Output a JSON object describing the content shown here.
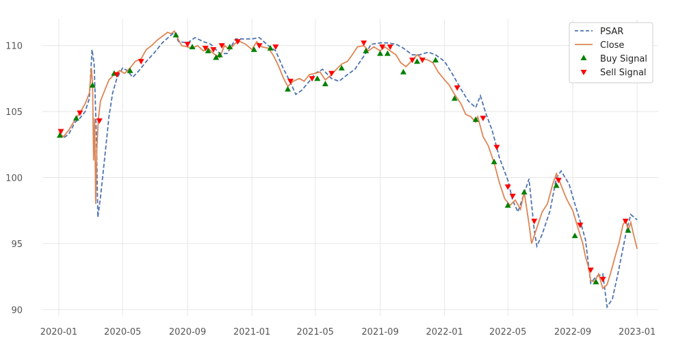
{
  "chart_data": {
    "type": "line",
    "title": "",
    "xlabel": "",
    "ylabel": "",
    "xlim": [
      "2019-12-01",
      "2023-02-10"
    ],
    "ylim": [
      89.5,
      112
    ],
    "grid": true,
    "legend_position": "top-right",
    "x_ticks": [
      "2020-01",
      "2020-05",
      "2020-09",
      "2021-01",
      "2021-05",
      "2021-09",
      "2022-01",
      "2022-05",
      "2022-09",
      "2023-01"
    ],
    "y_ticks": [
      90,
      95,
      100,
      105,
      110
    ],
    "colors": {
      "psar": "#4c72b0",
      "close": "#dd8452",
      "buy": "#008000",
      "sell": "#ff0000",
      "grid": "#e6e6e6"
    },
    "series": [
      {
        "name": "Close",
        "style": "solid",
        "points": [
          [
            "2020-01-01",
            103.4
          ],
          [
            "2020-01-10",
            103.1
          ],
          [
            "2020-01-20",
            103.6
          ],
          [
            "2020-02-01",
            104.4
          ],
          [
            "2020-02-10",
            104.9
          ],
          [
            "2020-02-20",
            105.6
          ],
          [
            "2020-02-28",
            106.4
          ],
          [
            "2020-03-03",
            108.3
          ],
          [
            "2020-03-05",
            107.0
          ],
          [
            "2020-03-07",
            101.3
          ],
          [
            "2020-03-09",
            104.5
          ],
          [
            "2020-03-11",
            98.0
          ],
          [
            "2020-03-13",
            102.0
          ],
          [
            "2020-03-16",
            104.4
          ],
          [
            "2020-03-20",
            105.8
          ],
          [
            "2020-03-28",
            106.6
          ],
          [
            "2020-04-05",
            107.4
          ],
          [
            "2020-04-15",
            107.8
          ],
          [
            "2020-04-25",
            108.1
          ],
          [
            "2020-05-05",
            107.9
          ],
          [
            "2020-05-15",
            108.3
          ],
          [
            "2020-05-25",
            108.8
          ],
          [
            "2020-06-05",
            109.0
          ],
          [
            "2020-06-15",
            109.7
          ],
          [
            "2020-06-25",
            110.0
          ],
          [
            "2020-07-05",
            110.4
          ],
          [
            "2020-07-15",
            110.7
          ],
          [
            "2020-07-25",
            111.0
          ],
          [
            "2020-08-01",
            110.9
          ],
          [
            "2020-08-07",
            111.1
          ],
          [
            "2020-08-14",
            110.5
          ],
          [
            "2020-08-21",
            110.0
          ],
          [
            "2020-09-01",
            109.9
          ],
          [
            "2020-09-10",
            109.8
          ],
          [
            "2020-09-20",
            110.0
          ],
          [
            "2020-10-01",
            109.6
          ],
          [
            "2020-10-10",
            109.8
          ],
          [
            "2020-10-20",
            109.4
          ],
          [
            "2020-11-01",
            109.1
          ],
          [
            "2020-11-10",
            110.0
          ],
          [
            "2020-11-20",
            109.7
          ],
          [
            "2020-12-01",
            110.2
          ],
          [
            "2020-12-10",
            110.3
          ],
          [
            "2020-12-20",
            110.1
          ],
          [
            "2021-01-01",
            109.7
          ],
          [
            "2021-01-10",
            110.3
          ],
          [
            "2021-01-20",
            109.9
          ],
          [
            "2021-02-01",
            109.8
          ],
          [
            "2021-02-10",
            109.3
          ],
          [
            "2021-02-20",
            108.5
          ],
          [
            "2021-03-01",
            107.6
          ],
          [
            "2021-03-10",
            106.9
          ],
          [
            "2021-03-20",
            107.3
          ],
          [
            "2021-04-01",
            107.5
          ],
          [
            "2021-04-10",
            107.3
          ],
          [
            "2021-04-20",
            107.8
          ],
          [
            "2021-05-01",
            107.9
          ],
          [
            "2021-05-10",
            108.0
          ],
          [
            "2021-05-20",
            107.4
          ],
          [
            "2021-06-01",
            107.8
          ],
          [
            "2021-06-10",
            108.2
          ],
          [
            "2021-06-20",
            108.6
          ],
          [
            "2021-07-01",
            108.8
          ],
          [
            "2021-07-10",
            109.3
          ],
          [
            "2021-07-20",
            109.9
          ],
          [
            "2021-08-01",
            110.0
          ],
          [
            "2021-08-10",
            109.6
          ],
          [
            "2021-08-20",
            109.9
          ],
          [
            "2021-09-01",
            109.6
          ],
          [
            "2021-09-10",
            109.9
          ],
          [
            "2021-09-20",
            109.6
          ],
          [
            "2021-10-01",
            109.3
          ],
          [
            "2021-10-10",
            108.7
          ],
          [
            "2021-10-20",
            108.4
          ],
          [
            "2021-11-01",
            108.9
          ],
          [
            "2021-11-10",
            109.3
          ],
          [
            "2021-11-20",
            109.0
          ],
          [
            "2021-12-01",
            108.9
          ],
          [
            "2021-12-10",
            108.7
          ],
          [
            "2021-12-20",
            108.0
          ],
          [
            "2022-01-01",
            107.4
          ],
          [
            "2022-01-10",
            107.0
          ],
          [
            "2022-01-20",
            106.3
          ],
          [
            "2022-02-01",
            105.6
          ],
          [
            "2022-02-10",
            104.8
          ],
          [
            "2022-02-20",
            104.6
          ],
          [
            "2022-03-01",
            104.2
          ],
          [
            "2022-03-05",
            104.6
          ],
          [
            "2022-03-15",
            103.1
          ],
          [
            "2022-03-25",
            102.4
          ],
          [
            "2022-04-05",
            101.1
          ],
          [
            "2022-04-15",
            99.6
          ],
          [
            "2022-04-25",
            98.4
          ],
          [
            "2022-05-05",
            97.9
          ],
          [
            "2022-05-15",
            98.3
          ],
          [
            "2022-05-25",
            97.6
          ],
          [
            "2022-06-01",
            98.9
          ],
          [
            "2022-06-10",
            96.5
          ],
          [
            "2022-06-15",
            95.0
          ],
          [
            "2022-06-25",
            96.2
          ],
          [
            "2022-07-05",
            97.4
          ],
          [
            "2022-07-15",
            98.0
          ],
          [
            "2022-07-25",
            99.5
          ],
          [
            "2022-08-01",
            100.3
          ],
          [
            "2022-08-10",
            99.4
          ],
          [
            "2022-08-20",
            98.4
          ],
          [
            "2022-09-01",
            97.5
          ],
          [
            "2022-09-10",
            96.3
          ],
          [
            "2022-09-20",
            95.0
          ],
          [
            "2022-09-25",
            94.0
          ],
          [
            "2022-10-01",
            93.2
          ],
          [
            "2022-10-05",
            92.2
          ],
          [
            "2022-10-12",
            92.1
          ],
          [
            "2022-10-20",
            92.7
          ],
          [
            "2022-10-28",
            91.6
          ],
          [
            "2022-11-05",
            91.9
          ],
          [
            "2022-11-12",
            92.8
          ],
          [
            "2022-11-20",
            94.0
          ],
          [
            "2022-11-28",
            95.1
          ],
          [
            "2022-12-05",
            96.4
          ],
          [
            "2022-12-10",
            96.8
          ],
          [
            "2022-12-15",
            96.0
          ],
          [
            "2022-12-20",
            96.6
          ],
          [
            "2022-12-25",
            95.7
          ],
          [
            "2023-01-01",
            94.6
          ]
        ]
      },
      {
        "name": "PSAR",
        "style": "dashed",
        "points": [
          [
            "2020-01-01",
            103.2
          ],
          [
            "2020-01-10",
            103.0
          ],
          [
            "2020-01-20",
            103.3
          ],
          [
            "2020-02-01",
            104.2
          ],
          [
            "2020-02-10",
            104.5
          ],
          [
            "2020-02-20",
            105.0
          ],
          [
            "2020-02-28",
            106.0
          ],
          [
            "2020-03-04",
            109.7
          ],
          [
            "2020-03-08",
            108.6
          ],
          [
            "2020-03-12",
            103.5
          ],
          [
            "2020-03-15",
            97.0
          ],
          [
            "2020-03-20",
            98.5
          ],
          [
            "2020-03-28",
            101.5
          ],
          [
            "2020-04-05",
            104.6
          ],
          [
            "2020-04-12",
            106.4
          ],
          [
            "2020-04-20",
            107.5
          ],
          [
            "2020-05-01",
            108.3
          ],
          [
            "2020-05-10",
            108.1
          ],
          [
            "2020-05-20",
            107.6
          ],
          [
            "2020-06-01",
            108.1
          ],
          [
            "2020-06-15",
            108.8
          ],
          [
            "2020-07-01",
            109.5
          ],
          [
            "2020-07-15",
            110.2
          ],
          [
            "2020-08-01",
            110.8
          ],
          [
            "2020-08-07",
            111.0
          ],
          [
            "2020-08-15",
            110.3
          ],
          [
            "2020-09-01",
            110.2
          ],
          [
            "2020-09-15",
            110.6
          ],
          [
            "2020-10-01",
            110.3
          ],
          [
            "2020-10-15",
            110.1
          ],
          [
            "2020-11-01",
            109.4
          ],
          [
            "2020-11-15",
            109.4
          ],
          [
            "2020-12-01",
            110.5
          ],
          [
            "2020-12-15",
            110.5
          ],
          [
            "2021-01-01",
            110.5
          ],
          [
            "2021-01-15",
            110.6
          ],
          [
            "2021-02-01",
            110.0
          ],
          [
            "2021-02-15",
            109.6
          ],
          [
            "2021-03-01",
            108.3
          ],
          [
            "2021-03-15",
            107.2
          ],
          [
            "2021-03-25",
            106.3
          ],
          [
            "2021-04-05",
            106.6
          ],
          [
            "2021-04-20",
            107.3
          ],
          [
            "2021-05-01",
            107.9
          ],
          [
            "2021-05-15",
            108.2
          ],
          [
            "2021-06-01",
            107.5
          ],
          [
            "2021-06-15",
            107.3
          ],
          [
            "2021-07-01",
            107.8
          ],
          [
            "2021-07-15",
            108.2
          ],
          [
            "2021-08-01",
            109.2
          ],
          [
            "2021-08-15",
            110.1
          ],
          [
            "2021-09-01",
            110.2
          ],
          [
            "2021-09-15",
            110.2
          ],
          [
            "2021-10-01",
            110.1
          ],
          [
            "2021-10-15",
            109.8
          ],
          [
            "2021-11-01",
            109.3
          ],
          [
            "2021-11-15",
            109.3
          ],
          [
            "2021-12-01",
            109.5
          ],
          [
            "2021-12-15",
            109.3
          ],
          [
            "2022-01-01",
            108.8
          ],
          [
            "2022-01-15",
            107.9
          ],
          [
            "2022-02-01",
            106.7
          ],
          [
            "2022-02-15",
            105.8
          ],
          [
            "2022-03-01",
            105.3
          ],
          [
            "2022-03-10",
            106.2
          ],
          [
            "2022-03-20",
            104.9
          ],
          [
            "2022-04-01",
            103.6
          ],
          [
            "2022-04-15",
            101.5
          ],
          [
            "2022-05-01",
            99.8
          ],
          [
            "2022-05-10",
            98.3
          ],
          [
            "2022-05-20",
            97.4
          ],
          [
            "2022-06-01",
            98.8
          ],
          [
            "2022-06-10",
            99.9
          ],
          [
            "2022-06-20",
            96.0
          ],
          [
            "2022-06-25",
            94.8
          ],
          [
            "2022-07-05",
            95.7
          ],
          [
            "2022-07-20",
            97.5
          ],
          [
            "2022-08-01",
            100.0
          ],
          [
            "2022-08-10",
            100.5
          ],
          [
            "2022-08-25",
            99.5
          ],
          [
            "2022-09-05",
            98.0
          ],
          [
            "2022-09-15",
            96.7
          ],
          [
            "2022-09-25",
            95.3
          ],
          [
            "2022-10-05",
            92.0
          ],
          [
            "2022-10-15",
            92.5
          ],
          [
            "2022-10-28",
            92.7
          ],
          [
            "2022-11-05",
            90.2
          ],
          [
            "2022-11-15",
            90.8
          ],
          [
            "2022-11-25",
            92.6
          ],
          [
            "2022-12-05",
            94.6
          ],
          [
            "2022-12-12",
            96.0
          ],
          [
            "2022-12-20",
            97.2
          ],
          [
            "2023-01-01",
            96.8
          ]
        ]
      }
    ],
    "buy_signals": [
      [
        "2020-01-03",
        103.2
      ],
      [
        "2020-02-03",
        104.5
      ],
      [
        "2020-03-05",
        107.0
      ],
      [
        "2020-04-15",
        107.9
      ],
      [
        "2020-05-15",
        108.1
      ],
      [
        "2020-08-10",
        110.8
      ],
      [
        "2020-09-10",
        109.9
      ],
      [
        "2020-10-10",
        109.6
      ],
      [
        "2020-10-25",
        109.1
      ],
      [
        "2020-11-01",
        109.3
      ],
      [
        "2020-11-20",
        109.9
      ],
      [
        "2021-01-05",
        109.7
      ],
      [
        "2021-02-05",
        109.8
      ],
      [
        "2021-03-10",
        106.7
      ],
      [
        "2021-05-05",
        107.5
      ],
      [
        "2021-05-20",
        107.1
      ],
      [
        "2021-06-20",
        108.3
      ],
      [
        "2021-08-05",
        109.6
      ],
      [
        "2021-09-01",
        109.4
      ],
      [
        "2021-09-15",
        109.4
      ],
      [
        "2021-10-15",
        108.0
      ],
      [
        "2021-11-10",
        108.8
      ],
      [
        "2021-12-15",
        108.9
      ],
      [
        "2022-01-20",
        106.0
      ],
      [
        "2022-03-01",
        104.4
      ],
      [
        "2022-04-05",
        101.2
      ],
      [
        "2022-05-01",
        97.9
      ],
      [
        "2022-06-01",
        98.9
      ],
      [
        "2022-08-01",
        99.4
      ],
      [
        "2022-09-05",
        95.6
      ],
      [
        "2022-10-15",
        92.1
      ],
      [
        "2022-12-15",
        96.0
      ]
    ],
    "sell_signals": [
      [
        "2020-01-05",
        103.5
      ],
      [
        "2020-02-10",
        104.9
      ],
      [
        "2020-03-18",
        104.3
      ],
      [
        "2020-04-20",
        107.8
      ],
      [
        "2020-06-05",
        108.8
      ],
      [
        "2020-09-01",
        110.1
      ],
      [
        "2020-10-05",
        109.8
      ],
      [
        "2020-10-20",
        109.7
      ],
      [
        "2020-11-05",
        110.0
      ],
      [
        "2020-12-05",
        110.3
      ],
      [
        "2021-01-15",
        110.0
      ],
      [
        "2021-02-15",
        109.9
      ],
      [
        "2021-03-15",
        107.3
      ],
      [
        "2021-04-25",
        107.5
      ],
      [
        "2021-06-01",
        107.9
      ],
      [
        "2021-08-01",
        110.2
      ],
      [
        "2021-09-05",
        109.9
      ],
      [
        "2021-09-20",
        109.9
      ],
      [
        "2021-11-01",
        108.9
      ],
      [
        "2021-11-20",
        108.9
      ],
      [
        "2022-01-25",
        106.8
      ],
      [
        "2022-03-15",
        104.5
      ],
      [
        "2022-04-10",
        102.3
      ],
      [
        "2022-05-01",
        99.3
      ],
      [
        "2022-05-10",
        98.6
      ],
      [
        "2022-06-20",
        96.7
      ],
      [
        "2022-08-05",
        99.8
      ],
      [
        "2022-09-15",
        96.4
      ],
      [
        "2022-10-05",
        93.0
      ],
      [
        "2022-10-28",
        92.3
      ],
      [
        "2022-12-10",
        96.7
      ]
    ]
  },
  "legend": {
    "entries": [
      {
        "key": "psar",
        "label": "PSAR"
      },
      {
        "key": "close",
        "label": "Close"
      },
      {
        "key": "buy",
        "label": "Buy Signal"
      },
      {
        "key": "sell",
        "label": "Sell Signal"
      }
    ]
  }
}
